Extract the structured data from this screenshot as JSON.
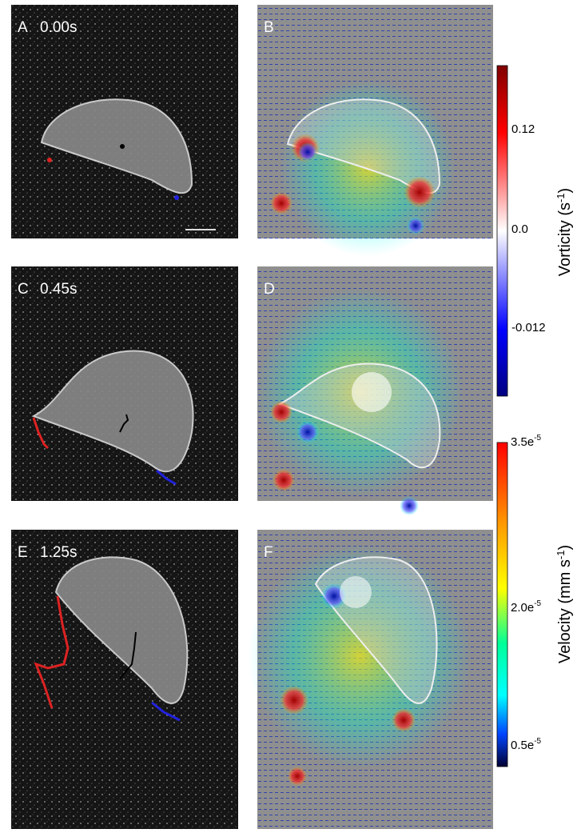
{
  "panels": [
    {
      "letter": "A",
      "time": "0.00s"
    },
    {
      "letter": "B"
    },
    {
      "letter": "C",
      "time": "0.45s"
    },
    {
      "letter": "D"
    },
    {
      "letter": "E",
      "time": "1.25s"
    },
    {
      "letter": "F"
    }
  ],
  "vorticity_bar": {
    "label": {
      "text": "Vorticity (s",
      "sup": "-1",
      "end": ")"
    },
    "ticks": [
      "0.12",
      "0.0",
      "-0.012"
    ]
  },
  "velocity_bar": {
    "label": {
      "text": "Velocity (mm s",
      "sup": "-1",
      "end": ")"
    },
    "ticks": [
      {
        "base": "3.5e",
        "sup": "-5"
      },
      {
        "base": "2.0e",
        "sup": "-5"
      },
      {
        "base": "0.5e",
        "sup": "-5"
      }
    ]
  }
}
